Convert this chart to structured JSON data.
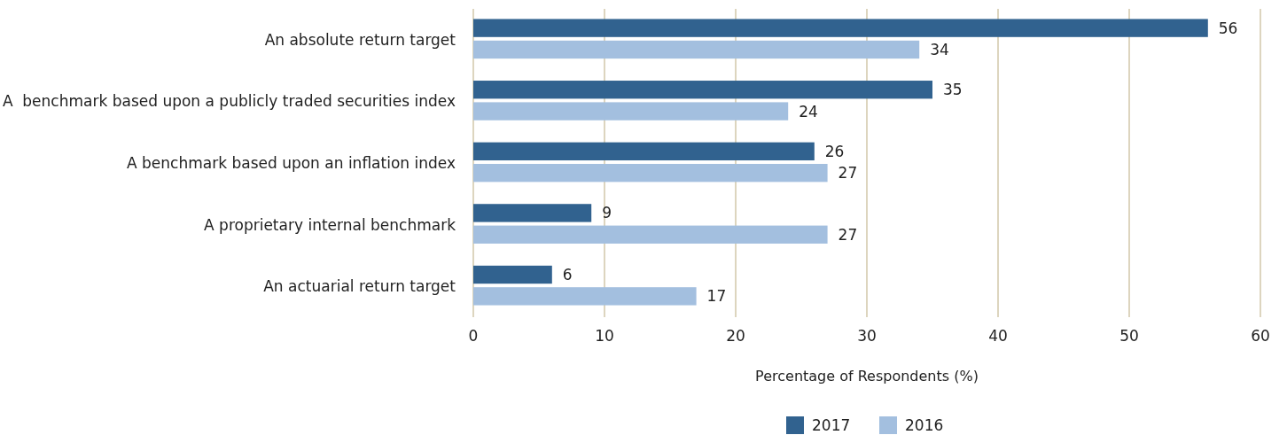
{
  "chart_data": {
    "type": "bar",
    "orientation": "horizontal",
    "xlabel": "Percentage of Respondents (%)",
    "categories": [
      "An absolute return target",
      "A  benchmark based upon a publicly traded securities index",
      "A benchmark based upon an inflation index",
      "A proprietary internal benchmark",
      "An actuarial return target"
    ],
    "series": [
      {
        "name": "2017",
        "color": "#31628f",
        "values": [
          56,
          35,
          26,
          9,
          6
        ]
      },
      {
        "name": "2016",
        "color": "#a3bfdf",
        "values": [
          34,
          24,
          27,
          27,
          17
        ]
      }
    ],
    "xlim": [
      0,
      60
    ],
    "xticks": [
      0,
      10,
      20,
      30,
      40,
      50,
      60
    ],
    "grid": "x",
    "data_labels": true,
    "legend": "bottom"
  }
}
